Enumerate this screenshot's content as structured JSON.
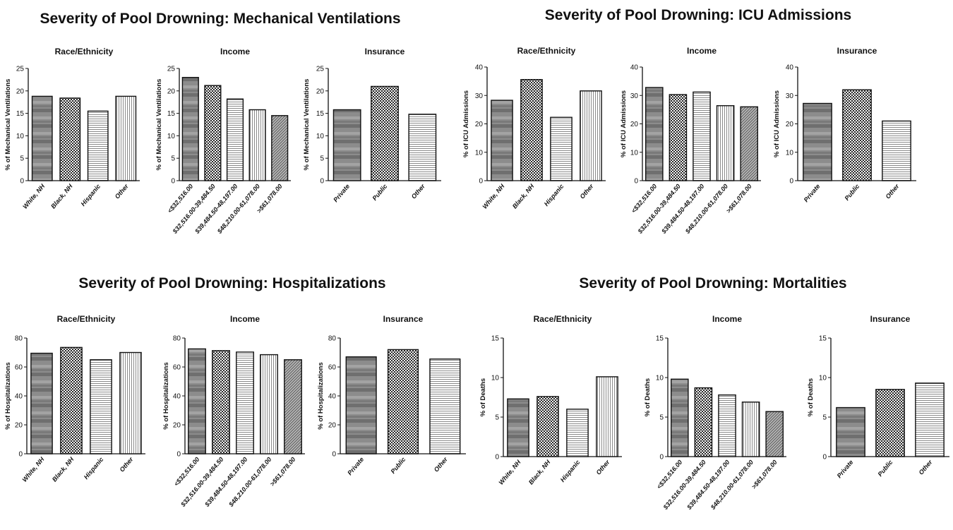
{
  "figure": {
    "groups": [
      {
        "title": "Severity of Pool Drowning: Mechanical Ventilations"
      },
      {
        "title": "Severity of Pool Drowning: ICU Admissions"
      },
      {
        "title": "Severity of Pool Drowning: Hospitalizations"
      },
      {
        "title": "Severity of Pool Drowning: Mortalities"
      }
    ]
  },
  "patterns": [
    "horizontal-band-gray",
    "checkerboard-dark",
    "horizontal-lines-light",
    "vertical-lines-light",
    "diagonal-lines-gray"
  ],
  "chart_data": [
    {
      "type": "bar",
      "group": 0,
      "title": "Race/Ethnicity",
      "ylabel": "% of Mechanical Ventilations",
      "categories": [
        "White, NH",
        "Black, NH",
        "Hispanic",
        "Other"
      ],
      "values": [
        18.8,
        18.4,
        15.5,
        18.8
      ],
      "ylim": [
        0,
        25
      ],
      "yticks": [
        0,
        5,
        10,
        15,
        20,
        25
      ],
      "patterns": [
        0,
        1,
        2,
        3
      ]
    },
    {
      "type": "bar",
      "group": 0,
      "title": "Income",
      "ylabel": "% of Mechanical Ventilations",
      "categories": [
        "<$32,516.00",
        "$32,516.00-39,484.50",
        "$39,484.50-48,197.00",
        "$48,210.00-61,078.00",
        ">$61,078.00"
      ],
      "values": [
        23.0,
        21.2,
        18.2,
        15.8,
        14.5
      ],
      "ylim": [
        0,
        25
      ],
      "yticks": [
        0,
        5,
        10,
        15,
        20,
        25
      ],
      "patterns": [
        0,
        1,
        2,
        3,
        4
      ]
    },
    {
      "type": "bar",
      "group": 0,
      "title": "Insurance",
      "ylabel": "% of Mechanical Ventilations",
      "categories": [
        "Private",
        "Public",
        "Other"
      ],
      "values": [
        15.8,
        21.0,
        14.8
      ],
      "ylim": [
        0,
        25
      ],
      "yticks": [
        0,
        5,
        10,
        15,
        20,
        25
      ],
      "patterns": [
        0,
        1,
        2
      ]
    },
    {
      "type": "bar",
      "group": 1,
      "title": "Race/Ethnicity",
      "ylabel": "% of ICU Admissions",
      "categories": [
        "White, NH",
        "Black, NH",
        "Hispanic",
        "Other"
      ],
      "values": [
        28.3,
        35.6,
        22.3,
        31.6
      ],
      "ylim": [
        0,
        40
      ],
      "yticks": [
        0,
        10,
        20,
        30,
        40
      ],
      "patterns": [
        0,
        1,
        2,
        3
      ]
    },
    {
      "type": "bar",
      "group": 1,
      "title": "Income",
      "ylabel": "% of ICU Admissions",
      "categories": [
        "<$32,516.00",
        "$32,516.00-39,484.50",
        "$39,484.50-48,197.00",
        "$48,210.00-61,078.00",
        ">$61,078.00"
      ],
      "values": [
        32.8,
        30.3,
        31.2,
        26.4,
        26.0
      ],
      "ylim": [
        0,
        40
      ],
      "yticks": [
        0,
        10,
        20,
        30,
        40
      ],
      "patterns": [
        0,
        1,
        2,
        3,
        4
      ]
    },
    {
      "type": "bar",
      "group": 1,
      "title": "Insurance",
      "ylabel": "% of ICU Admissions",
      "categories": [
        "Private",
        "Public",
        "Other"
      ],
      "values": [
        27.2,
        32.0,
        21.0
      ],
      "ylim": [
        0,
        40
      ],
      "yticks": [
        0,
        10,
        20,
        30,
        40
      ],
      "patterns": [
        0,
        1,
        2
      ]
    },
    {
      "type": "bar",
      "group": 2,
      "title": "Race/Ethnicity",
      "ylabel": "% of Hospitalizations",
      "categories": [
        "White, NH",
        "Black, NH",
        "Hispanic",
        "Other"
      ],
      "values": [
        69.5,
        73.5,
        65.0,
        70.0
      ],
      "ylim": [
        0,
        80
      ],
      "yticks": [
        0,
        20,
        40,
        60,
        80
      ],
      "patterns": [
        0,
        1,
        2,
        3
      ]
    },
    {
      "type": "bar",
      "group": 2,
      "title": "Income",
      "ylabel": "% of Hospitalizations",
      "categories": [
        "<$32,516.00",
        "$32,516.00-39,484.50",
        "$39,484.50-48,197.00",
        "$48,210.00-61,078.00",
        ">$61,078.00"
      ],
      "values": [
        72.5,
        71.3,
        70.3,
        68.5,
        65.0
      ],
      "ylim": [
        0,
        80
      ],
      "yticks": [
        0,
        20,
        40,
        60,
        80
      ],
      "patterns": [
        0,
        1,
        2,
        3,
        4
      ]
    },
    {
      "type": "bar",
      "group": 2,
      "title": "Insurance",
      "ylabel": "% of Hospitalizations",
      "categories": [
        "Private",
        "Public",
        "Other"
      ],
      "values": [
        67.0,
        72.0,
        65.5
      ],
      "ylim": [
        0,
        80
      ],
      "yticks": [
        0,
        20,
        40,
        60,
        80
      ],
      "patterns": [
        0,
        1,
        2
      ]
    },
    {
      "type": "bar",
      "group": 3,
      "title": "Race/Ethnicity",
      "ylabel": "% of Deaths",
      "categories": [
        "White, NH",
        "Black, NH",
        "Hispanic",
        "Other"
      ],
      "values": [
        7.3,
        7.6,
        6.0,
        10.1
      ],
      "ylim": [
        0,
        15
      ],
      "yticks": [
        0,
        5,
        10,
        15
      ],
      "patterns": [
        0,
        1,
        2,
        3
      ]
    },
    {
      "type": "bar",
      "group": 3,
      "title": "Income",
      "ylabel": "% of Deaths",
      "categories": [
        "<$32,516.00",
        "$32,516.00-39,484.50",
        "$39,484.50-48,197.00",
        "$48,210.00-61,078.00",
        ">$61,078.00"
      ],
      "values": [
        9.8,
        8.7,
        7.8,
        6.9,
        5.7
      ],
      "ylim": [
        0,
        15
      ],
      "yticks": [
        0,
        5,
        10,
        15
      ],
      "patterns": [
        0,
        1,
        2,
        3,
        4
      ]
    },
    {
      "type": "bar",
      "group": 3,
      "title": "Insurance",
      "ylabel": "% of Deaths",
      "categories": [
        "Private",
        "Public",
        "Other"
      ],
      "values": [
        6.2,
        8.5,
        9.3
      ],
      "ylim": [
        0,
        15
      ],
      "yticks": [
        0,
        5,
        10,
        15
      ],
      "patterns": [
        0,
        1,
        2
      ]
    }
  ]
}
